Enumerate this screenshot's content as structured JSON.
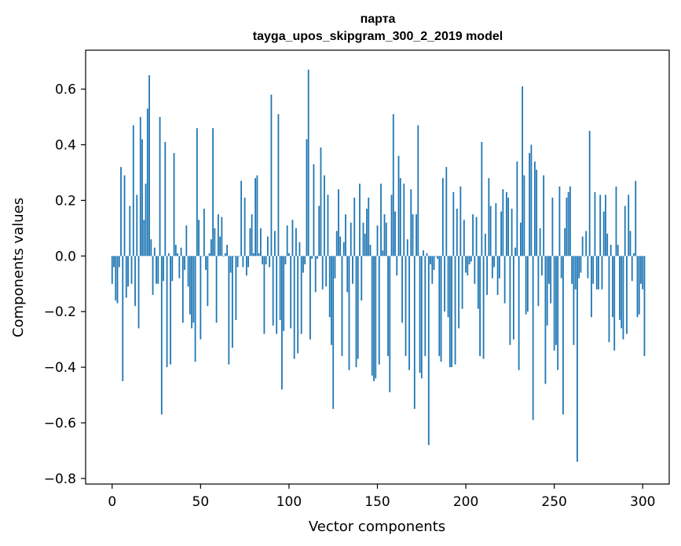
{
  "chart_data": {
    "type": "bar",
    "title": "парта",
    "subtitle": "tayga_upos_skipgram_300_2_2019 model",
    "xlabel": "Vector components",
    "ylabel": "Components values",
    "xlim": [
      -15,
      315
    ],
    "ylim": [
      -0.82,
      0.74
    ],
    "xticks": [
      0,
      50,
      100,
      150,
      200,
      250,
      300
    ],
    "yticks": [
      -0.8,
      -0.6,
      -0.4,
      -0.2,
      0.0,
      0.2,
      0.4,
      0.6
    ],
    "ytick_labels": [
      "−0.8",
      "−0.6",
      "−0.4",
      "−0.2",
      "0.0",
      "0.2",
      "0.4",
      "0.6"
    ],
    "color": "#1f77b4",
    "grid": false,
    "legend": "none",
    "x_start": 0,
    "values": [
      -0.1,
      -0.04,
      -0.16,
      -0.17,
      -0.04,
      0.32,
      -0.45,
      0.29,
      -0.15,
      -0.11,
      0.18,
      -0.1,
      0.47,
      -0.18,
      0.22,
      -0.26,
      0.5,
      0.42,
      0.13,
      0.26,
      0.53,
      0.65,
      0.06,
      -0.14,
      0.03,
      -0.1,
      -0.1,
      0.5,
      -0.57,
      -0.09,
      0.41,
      -0.4,
      0.01,
      -0.39,
      -0.09,
      0.37,
      0.04,
      0.01,
      -0.08,
      0.03,
      -0.24,
      -0.05,
      0.11,
      -0.11,
      -0.21,
      -0.26,
      -0.24,
      -0.38,
      0.46,
      0.13,
      -0.3,
      0.0,
      0.17,
      -0.05,
      -0.18,
      0.01,
      0.06,
      0.46,
      0.1,
      -0.24,
      0.15,
      0.07,
      0.14,
      0.0,
      0.01,
      0.04,
      -0.39,
      -0.06,
      -0.33,
      0.0,
      -0.23,
      -0.04,
      0.0,
      0.27,
      -0.04,
      0.21,
      -0.07,
      -0.04,
      0.1,
      0.15,
      0.01,
      0.28,
      0.29,
      0.01,
      0.1,
      -0.03,
      -0.28,
      -0.03,
      0.07,
      -0.04,
      0.58,
      -0.25,
      0.09,
      -0.28,
      0.51,
      -0.23,
      -0.48,
      -0.27,
      -0.03,
      0.11,
      0.01,
      -0.26,
      0.13,
      -0.37,
      0.1,
      -0.35,
      0.05,
      -0.28,
      -0.06,
      -0.03,
      0.42,
      0.67,
      -0.3,
      -0.01,
      0.33,
      -0.13,
      -0.01,
      0.18,
      0.39,
      -0.12,
      0.29,
      -0.11,
      0.22,
      -0.22,
      -0.32,
      -0.55,
      -0.08,
      0.09,
      0.24,
      0.07,
      -0.36,
      0.05,
      0.15,
      -0.13,
      -0.41,
      0.12,
      -0.1,
      0.21,
      -0.4,
      -0.37,
      0.26,
      -0.16,
      0.12,
      0.08,
      0.17,
      0.21,
      0.04,
      -0.43,
      -0.45,
      -0.44,
      0.11,
      -0.39,
      0.26,
      0.02,
      0.15,
      0.12,
      -0.36,
      -0.49,
      0.22,
      0.51,
      0.16,
      -0.07,
      0.36,
      0.28,
      -0.24,
      0.26,
      -0.36,
      0.06,
      -0.41,
      0.24,
      0.15,
      -0.55,
      0.15,
      0.47,
      -0.42,
      -0.44,
      0.02,
      -0.36,
      0.01,
      -0.68,
      -0.03,
      -0.1,
      -0.05,
      0.0,
      -0.01,
      -0.36,
      -0.38,
      0.28,
      -0.2,
      0.32,
      -0.22,
      -0.4,
      -0.4,
      0.23,
      -0.39,
      0.17,
      -0.26,
      0.25,
      -0.19,
      0.13,
      -0.06,
      -0.07,
      -0.03,
      -0.02,
      0.15,
      -0.1,
      0.14,
      -0.19,
      -0.36,
      0.41,
      -0.37,
      0.08,
      -0.14,
      0.28,
      0.18,
      -0.08,
      -0.04,
      0.19,
      -0.14,
      -0.08,
      0.16,
      0.24,
      -0.17,
      0.23,
      0.21,
      -0.32,
      0.17,
      -0.3,
      0.03,
      0.34,
      -0.41,
      0.12,
      0.61,
      0.29,
      -0.21,
      -0.2,
      0.37,
      0.4,
      -0.59,
      0.34,
      0.31,
      -0.18,
      0.1,
      -0.07,
      0.29,
      -0.46,
      -0.25,
      -0.1,
      -0.17,
      0.21,
      -0.34,
      -0.32,
      -0.41,
      0.25,
      -0.08,
      -0.57,
      0.1,
      0.21,
      0.23,
      0.25,
      -0.1,
      -0.32,
      -0.12,
      -0.74,
      -0.08,
      -0.06,
      0.07,
      0.0,
      0.09,
      -0.08,
      0.45,
      -0.22,
      -0.1,
      0.23,
      -0.12,
      -0.12,
      0.22,
      -0.12,
      0.16,
      0.22,
      0.08,
      -0.31,
      0.04,
      -0.22,
      -0.34,
      0.25,
      0.04,
      -0.23,
      -0.26,
      -0.3,
      0.18,
      -0.28,
      0.22,
      0.09,
      -0.09,
      0.01,
      0.27,
      -0.22,
      -0.21,
      -0.1,
      -0.12,
      -0.36
    ]
  }
}
